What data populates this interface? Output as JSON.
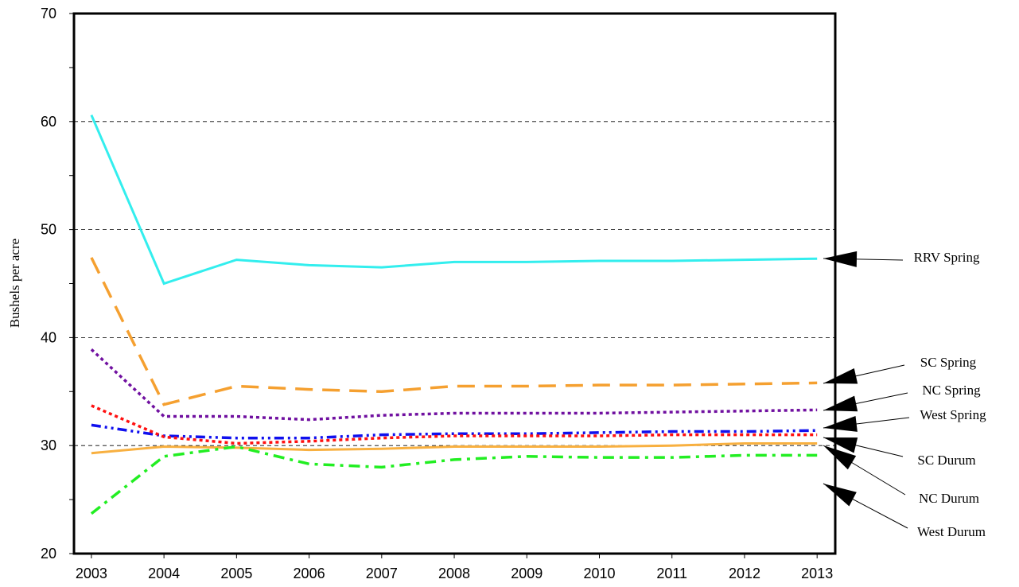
{
  "chart_data": {
    "type": "line",
    "ylabel": "Bushels per acre",
    "x": [
      2003,
      2004,
      2005,
      2006,
      2007,
      2008,
      2009,
      2010,
      2011,
      2012,
      2013
    ],
    "xlim": [
      2002.76,
      2013.25
    ],
    "xticks": [
      2003,
      2004,
      2005,
      2006,
      2007,
      2008,
      2009,
      2010,
      2011,
      2012,
      2013
    ],
    "ylim": [
      20,
      70
    ],
    "yticks": [
      20,
      30,
      40,
      50,
      60,
      70
    ],
    "grid": true,
    "series": [
      {
        "name": "RRV Spring",
        "color": "#33eeee",
        "line_style": "solid",
        "values": [
          60.6,
          45.0,
          47.2,
          46.7,
          46.5,
          47.0,
          47.0,
          47.1,
          47.1,
          47.2,
          47.3
        ]
      },
      {
        "name": "SC Spring",
        "color": "#f5a030",
        "line_style": "dashed",
        "values": [
          47.4,
          33.8,
          35.5,
          35.2,
          35.0,
          35.5,
          35.5,
          35.6,
          35.6,
          35.7,
          35.8
        ]
      },
      {
        "name": "NC Spring",
        "color": "#7010a0",
        "line_style": "dotted",
        "values": [
          38.9,
          32.7,
          32.7,
          32.4,
          32.8,
          33.0,
          33.0,
          33.0,
          33.1,
          33.2,
          33.3
        ]
      },
      {
        "name": "West Spring",
        "color": "#1010ee",
        "line_style": "dashdotdot",
        "values": [
          31.9,
          30.9,
          30.7,
          30.7,
          31.0,
          31.1,
          31.1,
          31.2,
          31.3,
          31.3,
          31.4
        ]
      },
      {
        "name": "SC Durum",
        "color": "#ff1010",
        "line_style": "dotted",
        "values": [
          33.7,
          30.8,
          30.2,
          30.4,
          30.7,
          30.9,
          30.9,
          30.9,
          31.0,
          31.0,
          31.0
        ]
      },
      {
        "name": "NC Durum",
        "color": "#f8b040",
        "line_style": "solid",
        "values": [
          29.3,
          29.9,
          29.8,
          29.6,
          29.7,
          29.9,
          29.9,
          29.9,
          30.0,
          30.2,
          30.2
        ]
      },
      {
        "name": "West Durum",
        "color": "#22ee22",
        "line_style": "dashdot",
        "values": [
          23.7,
          29.0,
          29.9,
          28.3,
          28.0,
          28.7,
          29.0,
          28.9,
          28.9,
          29.1,
          29.1
        ]
      }
    ]
  }
}
